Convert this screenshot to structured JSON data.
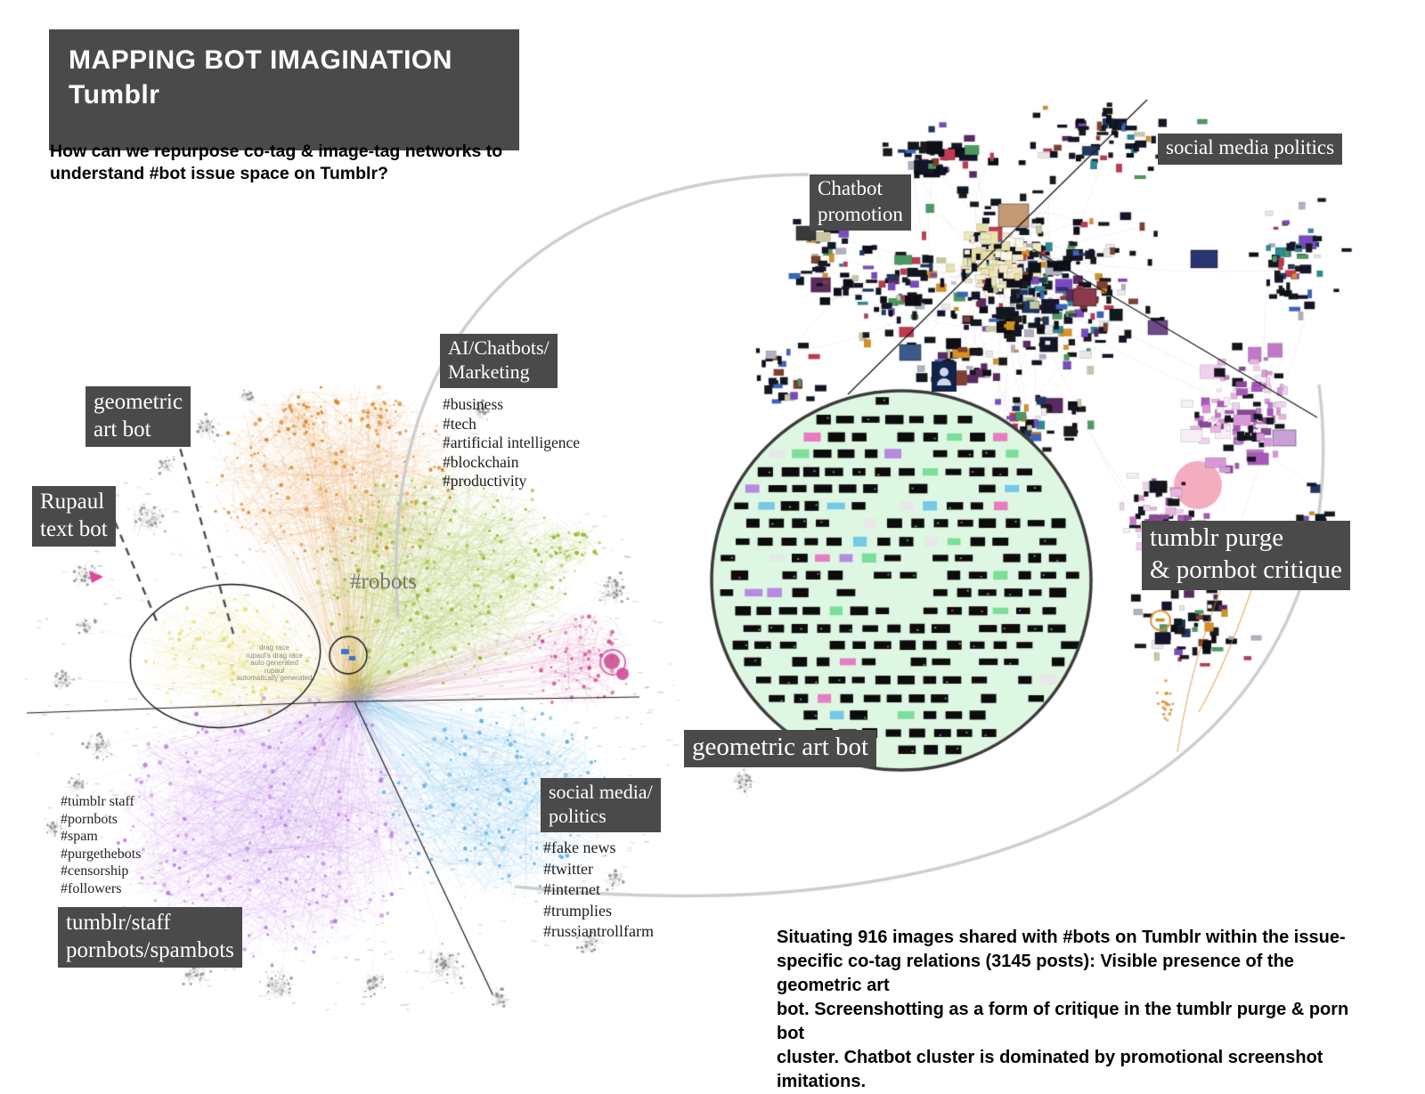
{
  "poster": {
    "title_lines": [
      "MAPPING BOT IMAGINATION",
      "Tumblr"
    ],
    "question_lines": [
      "How can we repurpose co-tag & image-tag networks to",
      "understand #bot issue space on Tumblr?"
    ],
    "caption_lines": [
      "Situating 916 images shared with #bots on Tumblr within the issue-",
      "specific co-tag relations (3145 posts): Visible presence of the geometric art",
      "bot. Screenshotting as a form of critique in the tumblr purge & porn bot",
      "cluster. Chatbot cluster is dominated by promotional screenshot imitations."
    ]
  },
  "cotag_network": {
    "center_label": "#robots",
    "labels": {
      "geometric_art_bot": [
        "geometric",
        "art bot"
      ],
      "rupaul_text_bot": [
        "Rupaul",
        "text bot"
      ],
      "ai_chatbots_marketing": [
        "AI/Chatbots/",
        "Marketing"
      ],
      "social_media_politics": [
        "social media/",
        "politics"
      ],
      "tumblr_staff": [
        "tumblr/staff",
        "pornbots/spambots"
      ]
    },
    "tags": {
      "ai_chatbots_marketing": [
        "#business",
        "#tech",
        "#artificial intelligence",
        "#blockchain",
        "#productivity"
      ],
      "social_media_politics": [
        "#fake news",
        "#twitter",
        "#internet",
        "#trumplies",
        "#russiantrollfarm"
      ],
      "tumblr_staff": [
        "#tumblr staff",
        "#pornbots",
        "#spam",
        "#purgethebots",
        "#censorship",
        "#followers"
      ]
    },
    "micro_labels": [
      "drag race",
      "rupaul's drag race",
      "auto generated",
      "rupaul",
      "automatically generated"
    ]
  },
  "image_network": {
    "labels": {
      "chatbot_promotion": [
        "Chatbot",
        "promotion"
      ],
      "social_media_politics": "social media politics",
      "tumblr_purge_critique": [
        "tumblr purge",
        "& pornbot critique"
      ],
      "zoom_circle": "geometric art bot"
    }
  },
  "colors": {
    "label_background": "#4a4a4a",
    "cluster_orange": "#e0882a",
    "cluster_green": "#94b82a",
    "cluster_yellow": "#e6dc74",
    "cluster_purple": "#bd7de8",
    "cluster_blue": "#58b0e8",
    "cluster_pink": "#cf4f96",
    "cluster_gray": "#9e9e9e",
    "zoom_circle_fill": "#def7e2",
    "connector_gray": "#c9c9c9"
  }
}
